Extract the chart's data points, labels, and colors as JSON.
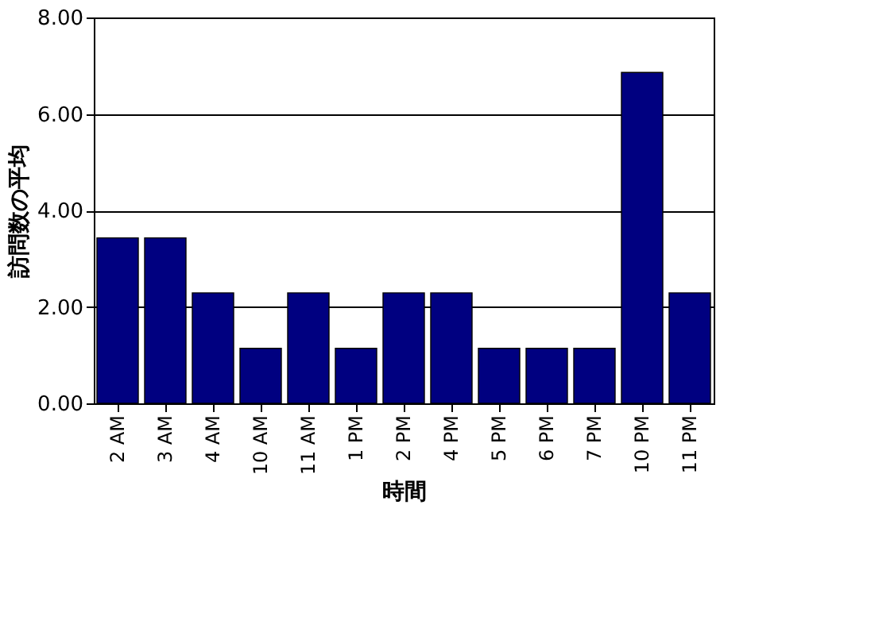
{
  "chart_data": {
    "type": "bar",
    "xlabel": "時間",
    "ylabel": "訪問数の平均",
    "categories": [
      "2 AM",
      "3 AM",
      "4 AM",
      "10 AM",
      "11 AM",
      "1 PM",
      "2 PM",
      "4 PM",
      "5 PM",
      "6 PM",
      "7 PM",
      "10 PM",
      "11 PM"
    ],
    "values": [
      3.43,
      3.43,
      2.29,
      1.14,
      2.29,
      1.14,
      2.29,
      2.29,
      1.14,
      1.14,
      1.14,
      6.86,
      2.29
    ],
    "color": "#000080",
    "ylim": [
      0,
      8
    ],
    "yticks": [
      {
        "value": 0,
        "label": "0.00"
      },
      {
        "value": 2,
        "label": "2.00"
      },
      {
        "value": 4,
        "label": "4.00"
      },
      {
        "value": 6,
        "label": "6.00"
      },
      {
        "value": 8,
        "label": "8.00"
      }
    ],
    "grid": "y"
  }
}
